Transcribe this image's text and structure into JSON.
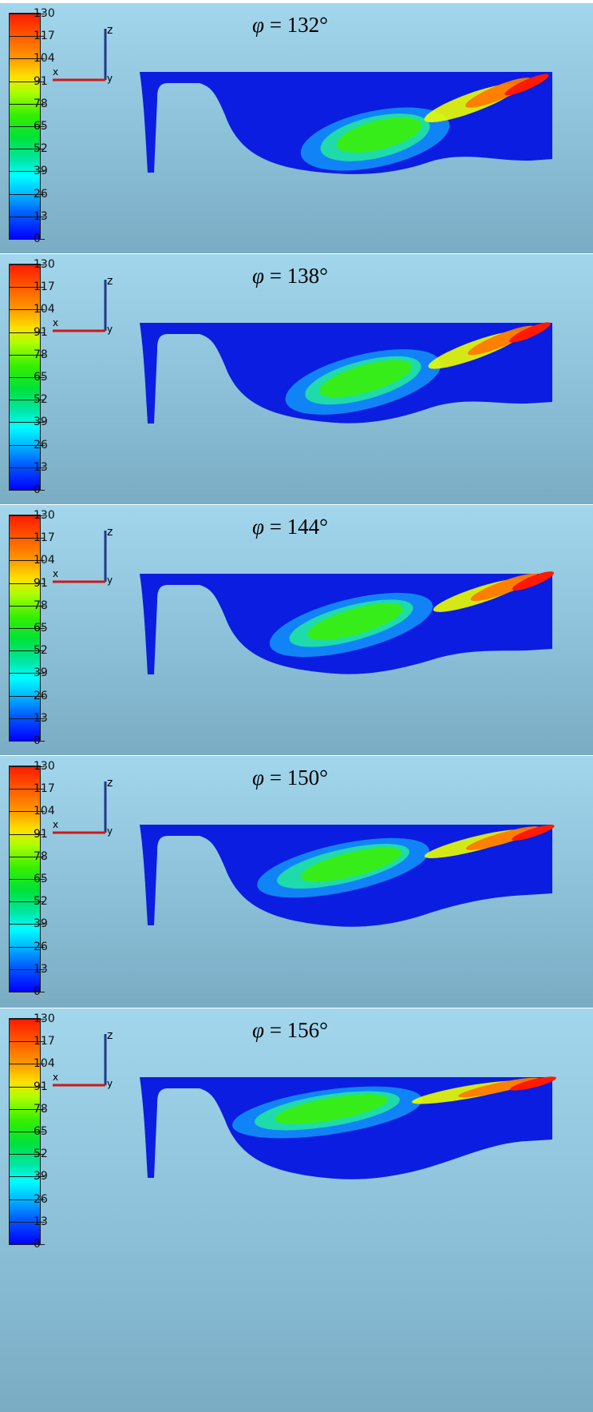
{
  "colorbar": {
    "labels": [
      "130",
      "117",
      "104",
      "91",
      "78",
      "65",
      "52",
      "39",
      "26",
      "13",
      "0"
    ]
  },
  "axes": {
    "z": "z",
    "x": "x",
    "y": "y"
  },
  "panels": [
    {
      "symbol": "φ",
      "label": "= 132°"
    },
    {
      "symbol": "φ",
      "label": "= 138°"
    },
    {
      "symbol": "φ",
      "label": "= 144°"
    },
    {
      "symbol": "φ",
      "label": "= 150°"
    },
    {
      "symbol": "φ",
      "label": "= 156°"
    }
  ],
  "colors": {
    "axis_z": "#1d3a8a",
    "axis_y": "#d01818",
    "domain_blue": "#0b1de0"
  }
}
